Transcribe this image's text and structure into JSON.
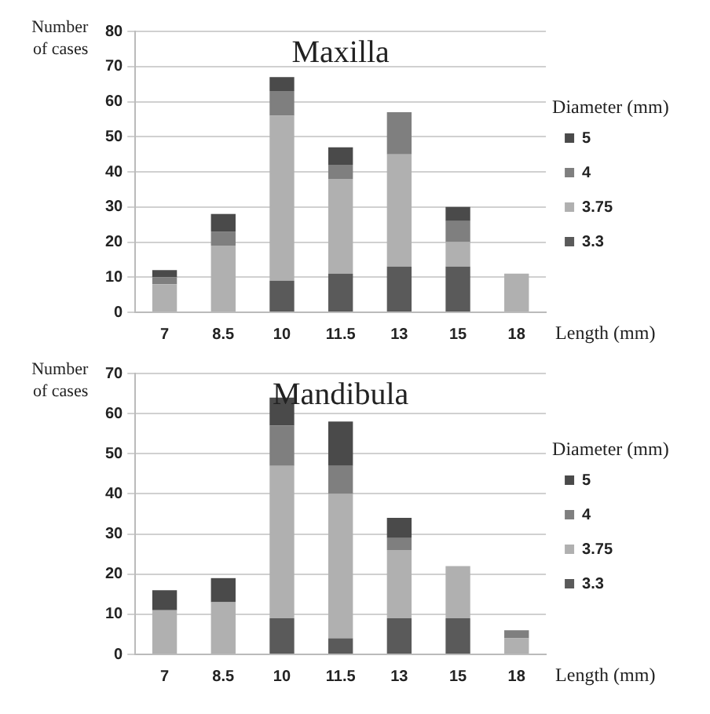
{
  "chart_data": [
    {
      "type": "bar",
      "title": "Maxilla",
      "xlabel": "Length (mm)",
      "ylabel": "Number of cases",
      "legend_title": "Diameter (mm)",
      "stacked": true,
      "categories": [
        "7",
        "8.5",
        "10",
        "11.5",
        "13",
        "15",
        "18"
      ],
      "ylim": [
        0,
        80
      ],
      "yticks": [
        0,
        10,
        20,
        30,
        40,
        50,
        60,
        70,
        80
      ],
      "grid": "y",
      "legend": "right",
      "series": [
        {
          "name": "3.3",
          "color": "#5a5a5a",
          "values": [
            0,
            0,
            9,
            11,
            13,
            13,
            0
          ]
        },
        {
          "name": "3.75",
          "color": "#b0b0b0",
          "values": [
            8,
            19,
            47,
            27,
            32,
            7,
            11
          ]
        },
        {
          "name": "4",
          "color": "#7f7f7f",
          "values": [
            2,
            4,
            7,
            4,
            12,
            6,
            0
          ]
        },
        {
          "name": "5",
          "color": "#4a4a4a",
          "values": [
            2,
            5,
            4,
            5,
            0,
            4,
            0
          ]
        }
      ]
    },
    {
      "type": "bar",
      "title": "Mandibula",
      "xlabel": "Length (mm)",
      "ylabel": "Number of cases",
      "legend_title": "Diameter (mm)",
      "stacked": true,
      "categories": [
        "7",
        "8.5",
        "10",
        "11.5",
        "13",
        "15",
        "18"
      ],
      "ylim": [
        0,
        70
      ],
      "yticks": [
        0,
        10,
        20,
        30,
        40,
        50,
        60,
        70
      ],
      "grid": "y",
      "legend": "right",
      "series": [
        {
          "name": "3.3",
          "color": "#5a5a5a",
          "values": [
            0,
            0,
            9,
            4,
            9,
            9,
            0
          ]
        },
        {
          "name": "3.75",
          "color": "#b0b0b0",
          "values": [
            11,
            13,
            38,
            36,
            17,
            13,
            4
          ]
        },
        {
          "name": "4",
          "color": "#7f7f7f",
          "values": [
            0,
            0,
            10,
            7,
            3,
            0,
            2
          ]
        },
        {
          "name": "5",
          "color": "#4a4a4a",
          "values": [
            5,
            6,
            7,
            11,
            5,
            0,
            0
          ]
        }
      ]
    }
  ]
}
